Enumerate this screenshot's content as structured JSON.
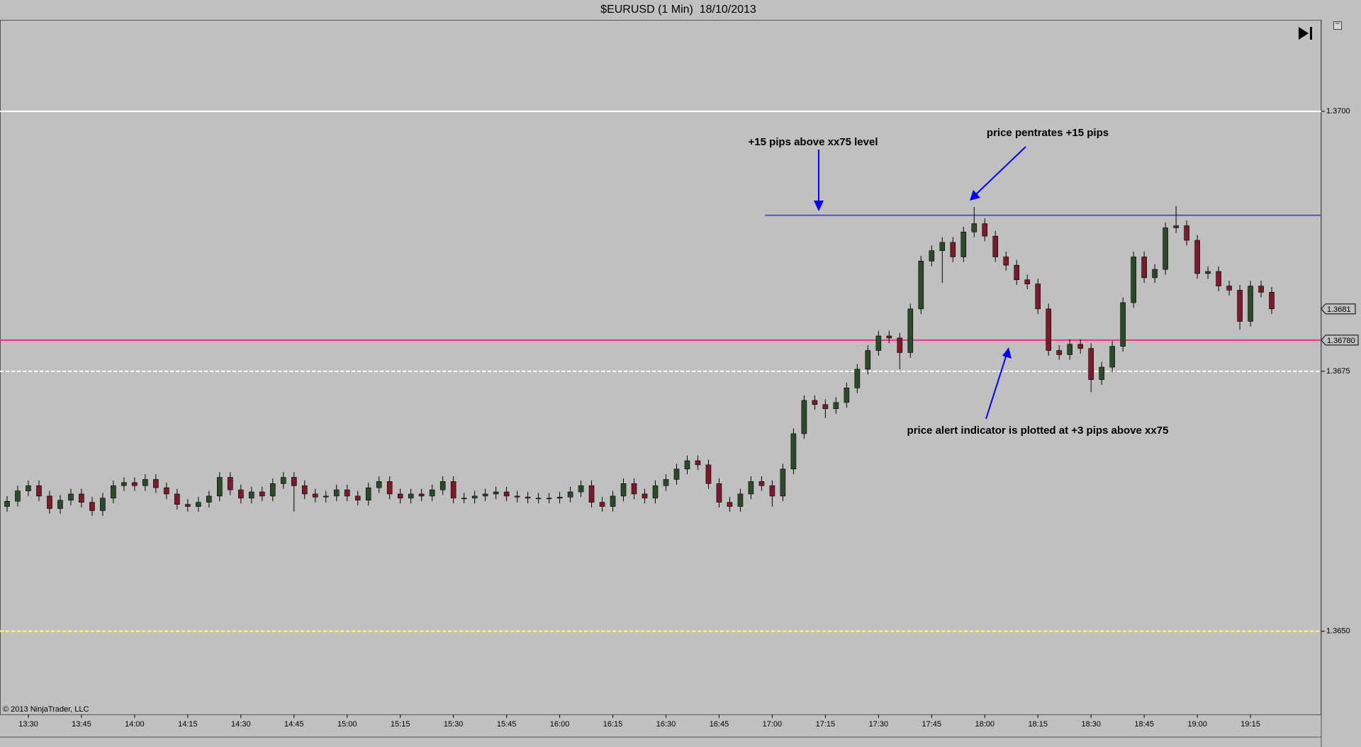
{
  "chart_data": {
    "type": "candlestick",
    "title": "$EURUSD (1 Min)  18/10/2013",
    "footer": "© 2013 NinjaTrader, LLC",
    "up_color": "#2b4a2b",
    "down_color": "#7a1a2a",
    "wick_color": "#000000",
    "xlim": [
      "13:22",
      "19:35"
    ],
    "xticks": [
      "13:30",
      "13:45",
      "14:00",
      "14:15",
      "14:30",
      "14:45",
      "15:00",
      "15:15",
      "15:30",
      "15:45",
      "16:00",
      "16:15",
      "16:30",
      "16:45",
      "17:00",
      "17:15",
      "17:30",
      "17:45",
      "18:00",
      "18:15",
      "18:30",
      "18:45",
      "19:00",
      "19:15"
    ],
    "ylim": [
      1.3642,
      1.37088
    ],
    "yticks": [
      {
        "value": 1.37,
        "label": "1.3700"
      },
      1.3675,
      {
        "value": 1.365,
        "label": "1.3650"
      }
    ],
    "lines": [
      {
        "value": 1.37,
        "color": "#ffffff",
        "style": "solid"
      },
      {
        "value": 1.369,
        "color": "#5858a8",
        "style": "solid",
        "start": "16:58"
      },
      {
        "value": 1.3678,
        "color": "#ff2a8a",
        "style": "solid",
        "label": "1.36780"
      },
      {
        "value": 1.3675,
        "color": "#ffffff",
        "style": "dashed"
      },
      {
        "value": 1.365,
        "color": "#ffff66",
        "style": "dashed"
      }
    ],
    "last_price": 1.3681,
    "annotations": [
      "+15 pips above xx75 level",
      "price pentrates +15 pips",
      "price alert indicator is plotted at +3 pips above xx75"
    ],
    "x": [
      "13:24",
      "13:27",
      "13:30",
      "13:33",
      "13:36",
      "13:39",
      "13:42",
      "13:45",
      "13:48",
      "13:51",
      "13:54",
      "13:57",
      "14:00",
      "14:03",
      "14:06",
      "14:09",
      "14:12",
      "14:15",
      "14:18",
      "14:21",
      "14:24",
      "14:27",
      "14:30",
      "14:33",
      "14:36",
      "14:39",
      "14:42",
      "14:45",
      "14:48",
      "14:51",
      "14:54",
      "14:57",
      "15:00",
      "15:03",
      "15:06",
      "15:09",
      "15:12",
      "15:15",
      "15:18",
      "15:21",
      "15:24",
      "15:27",
      "15:30",
      "15:33",
      "15:36",
      "15:39",
      "15:42",
      "15:45",
      "15:48",
      "15:51",
      "15:54",
      "15:57",
      "16:00",
      "16:03",
      "16:06",
      "16:09",
      "16:12",
      "16:15",
      "16:18",
      "16:21",
      "16:24",
      "16:27",
      "16:30",
      "16:33",
      "16:36",
      "16:39",
      "16:42",
      "16:45",
      "16:48",
      "16:51",
      "16:54",
      "16:57",
      "17:00",
      "17:03",
      "17:06",
      "17:09",
      "17:12",
      "17:15",
      "17:18",
      "17:21",
      "17:24",
      "17:27",
      "17:30",
      "17:33",
      "17:36",
      "17:39",
      "17:42",
      "17:45",
      "17:48",
      "17:51",
      "17:54",
      "17:57",
      "18:00",
      "18:03",
      "18:06",
      "18:09",
      "18:12",
      "18:15",
      "18:18",
      "18:21",
      "18:24",
      "18:27",
      "18:30",
      "18:33",
      "18:36",
      "18:39",
      "18:42",
      "18:45",
      "18:48",
      "18:51",
      "18:54",
      "18:57",
      "19:00",
      "19:03",
      "19:06",
      "19:09",
      "19:12",
      "19:15",
      "19:18",
      "19:21"
    ],
    "open": [
      1.3662,
      1.36625,
      1.36635,
      1.3664,
      1.3663,
      1.36618,
      1.36626,
      1.36632,
      1.36624,
      1.36616,
      1.36628,
      1.3664,
      1.36643,
      1.3664,
      1.36646,
      1.36638,
      1.36632,
      1.36622,
      1.3662,
      1.36624,
      1.3663,
      1.36648,
      1.36636,
      1.36628,
      1.36634,
      1.3663,
      1.36642,
      1.36648,
      1.3664,
      1.36632,
      1.36629,
      1.3663,
      1.36636,
      1.3663,
      1.36626,
      1.36638,
      1.36644,
      1.36632,
      1.36628,
      1.36632,
      1.3663,
      1.36636,
      1.36644,
      1.36628,
      1.36628,
      1.3663,
      1.36632,
      1.36634,
      1.3663,
      1.36629,
      1.36628,
      1.36628,
      1.36628,
      1.36629,
      1.36634,
      1.3664,
      1.36624,
      1.3662,
      1.3663,
      1.36642,
      1.36632,
      1.36628,
      1.3664,
      1.36646,
      1.36656,
      1.36664,
      1.3666,
      1.36642,
      1.36624,
      1.3662,
      1.36632,
      1.36644,
      1.3664,
      1.3663,
      1.36656,
      1.3669,
      1.36722,
      1.36718,
      1.36714,
      1.3672,
      1.36734,
      1.36752,
      1.3677,
      1.36784,
      1.36782,
      1.36768,
      1.3681,
      1.36856,
      1.36866,
      1.36874,
      1.3686,
      1.36884,
      1.36892,
      1.3688,
      1.3686,
      1.36852,
      1.36838,
      1.36834,
      1.3681,
      1.3677,
      1.36766,
      1.36776,
      1.36772,
      1.36742,
      1.36754,
      1.36774,
      1.36816,
      1.3686,
      1.3684,
      1.36848,
      1.36888,
      1.3689,
      1.36876,
      1.36844,
      1.36846,
      1.36832,
      1.36828,
      1.36798,
      1.36832,
      1.36826
    ],
    "high": [
      1.3663,
      1.3664,
      1.36645,
      1.36645,
      1.36635,
      1.36631,
      1.36637,
      1.36637,
      1.36629,
      1.36633,
      1.36645,
      1.36648,
      1.36648,
      1.36651,
      1.36651,
      1.36643,
      1.36637,
      1.36627,
      1.36629,
      1.36635,
      1.36653,
      1.36653,
      1.36641,
      1.36639,
      1.36639,
      1.36647,
      1.36653,
      1.36653,
      1.36645,
      1.36637,
      1.36635,
      1.36641,
      1.36641,
      1.36635,
      1.36643,
      1.36649,
      1.36649,
      1.36637,
      1.36637,
      1.36637,
      1.36641,
      1.36649,
      1.36649,
      1.36633,
      1.36635,
      1.36637,
      1.36639,
      1.36639,
      1.36635,
      1.36634,
      1.36633,
      1.36633,
      1.36634,
      1.36639,
      1.36645,
      1.36645,
      1.36629,
      1.36635,
      1.36647,
      1.36647,
      1.36637,
      1.36645,
      1.36651,
      1.36661,
      1.36669,
      1.36669,
      1.36665,
      1.36647,
      1.36629,
      1.36637,
      1.36649,
      1.36649,
      1.36645,
      1.36661,
      1.36695,
      1.36727,
      1.36727,
      1.36723,
      1.36725,
      1.36739,
      1.36757,
      1.36775,
      1.36789,
      1.36789,
      1.36787,
      1.36815,
      1.36861,
      1.36871,
      1.36879,
      1.36879,
      1.36889,
      1.36908,
      1.36897,
      1.36885,
      1.36865,
      1.36857,
      1.36843,
      1.36839,
      1.36815,
      1.36775,
      1.36781,
      1.36781,
      1.36777,
      1.36759,
      1.36779,
      1.36821,
      1.36865,
      1.36865,
      1.36853,
      1.36893,
      1.36909,
      1.36895,
      1.36881,
      1.36851,
      1.36851,
      1.36837,
      1.36833,
      1.36837,
      1.36837,
      1.36831
    ],
    "low": [
      1.36615,
      1.3662,
      1.3663,
      1.36625,
      1.36613,
      1.36613,
      1.36621,
      1.36619,
      1.36611,
      1.36611,
      1.36623,
      1.36635,
      1.36635,
      1.36635,
      1.36633,
      1.36627,
      1.36617,
      1.36615,
      1.36615,
      1.36619,
      1.36625,
      1.36631,
      1.36623,
      1.36623,
      1.36625,
      1.36625,
      1.36637,
      1.36615,
      1.36627,
      1.36624,
      1.36624,
      1.36625,
      1.36625,
      1.36621,
      1.36621,
      1.36633,
      1.36627,
      1.36623,
      1.36623,
      1.36625,
      1.36625,
      1.36631,
      1.36623,
      1.36623,
      1.36623,
      1.36625,
      1.36627,
      1.36625,
      1.36624,
      1.36623,
      1.36623,
      1.36623,
      1.36623,
      1.36624,
      1.36629,
      1.36619,
      1.36615,
      1.36615,
      1.36625,
      1.36627,
      1.36623,
      1.36623,
      1.36635,
      1.36641,
      1.36651,
      1.36655,
      1.36637,
      1.36619,
      1.36615,
      1.36615,
      1.36627,
      1.36635,
      1.3662,
      1.36625,
      1.36651,
      1.36685,
      1.36713,
      1.36705,
      1.36709,
      1.36715,
      1.36729,
      1.36747,
      1.36765,
      1.36777,
      1.36752,
      1.36763,
      1.36805,
      1.36851,
      1.36835,
      1.36855,
      1.36855,
      1.36879,
      1.36875,
      1.36855,
      1.36847,
      1.36833,
      1.36829,
      1.36805,
      1.36765,
      1.36761,
      1.36761,
      1.36767,
      1.3673,
      1.36737,
      1.36749,
      1.36769,
      1.36811,
      1.36835,
      1.36835,
      1.36843,
      1.36883,
      1.36871,
      1.36839,
      1.36839,
      1.36827,
      1.36823,
      1.3679,
      1.36793,
      1.36821,
      1.36805
    ],
    "close": [
      1.36625,
      1.36635,
      1.3664,
      1.3663,
      1.36618,
      1.36626,
      1.36632,
      1.36624,
      1.36616,
      1.36628,
      1.3664,
      1.36643,
      1.3664,
      1.36646,
      1.36638,
      1.36632,
      1.36622,
      1.3662,
      1.36624,
      1.3663,
      1.36648,
      1.36636,
      1.36628,
      1.36634,
      1.3663,
      1.36642,
      1.36648,
      1.3664,
      1.36632,
      1.36629,
      1.3663,
      1.36636,
      1.3663,
      1.36626,
      1.36638,
      1.36644,
      1.36632,
      1.36628,
      1.36632,
      1.3663,
      1.36636,
      1.36644,
      1.36628,
      1.36628,
      1.3663,
      1.36632,
      1.36634,
      1.3663,
      1.36629,
      1.36628,
      1.36628,
      1.36628,
      1.36629,
      1.36634,
      1.3664,
      1.36624,
      1.3662,
      1.3663,
      1.36642,
      1.36632,
      1.36628,
      1.3664,
      1.36646,
      1.36656,
      1.36664,
      1.3666,
      1.36642,
      1.36624,
      1.3662,
      1.36632,
      1.36644,
      1.3664,
      1.3663,
      1.36656,
      1.3669,
      1.36722,
      1.36718,
      1.36714,
      1.3672,
      1.36734,
      1.36752,
      1.3677,
      1.36784,
      1.36782,
      1.36768,
      1.3681,
      1.36856,
      1.36866,
      1.36874,
      1.3686,
      1.36884,
      1.36892,
      1.3688,
      1.3686,
      1.36852,
      1.36838,
      1.36834,
      1.3681,
      1.3677,
      1.36766,
      1.36776,
      1.36772,
      1.36742,
      1.36754,
      1.36774,
      1.36816,
      1.3686,
      1.3684,
      1.36848,
      1.36888,
      1.3689,
      1.36876,
      1.36844,
      1.36846,
      1.36832,
      1.36828,
      1.36798,
      1.36832,
      1.36826,
      1.3681
    ]
  }
}
